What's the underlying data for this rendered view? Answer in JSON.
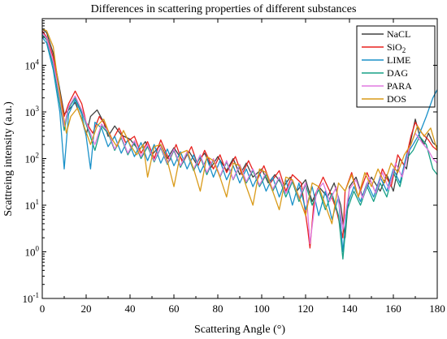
{
  "chart_data": {
    "type": "line",
    "title": "Differences in scattering properties of different substances",
    "xlabel": "Scattering Angle (°)",
    "ylabel": "Scattreing intensity (a.u.)",
    "xlim": [
      0,
      180
    ],
    "ylim": [
      0.1,
      100000
    ],
    "yscale": "log",
    "xticks": [
      0,
      20,
      40,
      60,
      80,
      100,
      120,
      140,
      160,
      180
    ],
    "yticks": [
      {
        "value": 0.1,
        "base": "10",
        "exp": "-1"
      },
      {
        "value": 1,
        "base": "10",
        "exp": "0"
      },
      {
        "value": 10,
        "base": "10",
        "exp": "1"
      },
      {
        "value": 100,
        "base": "10",
        "exp": "2"
      },
      {
        "value": 1000,
        "base": "10",
        "exp": "3"
      },
      {
        "value": 10000,
        "base": "10",
        "exp": "4"
      }
    ],
    "grid": false,
    "legend_position": "top-right",
    "series": [
      {
        "name": "NaCL",
        "name_main": "NaCL",
        "name_sub": "",
        "color": "#404040",
        "x": [
          0,
          2,
          5,
          8,
          10,
          12,
          15,
          18,
          20,
          22,
          25,
          28,
          30,
          33,
          36,
          40,
          44,
          47,
          50,
          54,
          57,
          60,
          64,
          67,
          70,
          74,
          77,
          80,
          84,
          87,
          90,
          93,
          96,
          100,
          103,
          106,
          110,
          113,
          116,
          120,
          123,
          126,
          130,
          133,
          136,
          138,
          140,
          143,
          146,
          150,
          154,
          157,
          160,
          163,
          166,
          168,
          170,
          172,
          174,
          176,
          178,
          180
        ],
        "y": [
          60000,
          50000,
          18000,
          3000,
          900,
          1100,
          1600,
          700,
          320,
          800,
          1100,
          600,
          300,
          500,
          320,
          260,
          150,
          230,
          120,
          200,
          100,
          170,
          90,
          140,
          80,
          130,
          65,
          110,
          55,
          100,
          45,
          80,
          40,
          60,
          30,
          45,
          25,
          40,
          20,
          35,
          12,
          25,
          15,
          30,
          10,
          2,
          25,
          40,
          15,
          40,
          20,
          45,
          20,
          100,
          60,
          250,
          700,
          300,
          200,
          350,
          220,
          180
        ]
      },
      {
        "name": "SiO2",
        "name_main": "SiO",
        "name_sub": "2",
        "color": "#e8211e",
        "x": [
          0,
          2,
          5,
          8,
          10,
          12,
          15,
          18,
          20,
          23,
          26,
          29,
          32,
          35,
          38,
          42,
          45,
          48,
          51,
          54,
          58,
          61,
          64,
          68,
          71,
          74,
          78,
          81,
          84,
          88,
          91,
          94,
          98,
          101,
          104,
          108,
          111,
          114,
          118,
          121,
          122,
          124,
          128,
          131,
          134,
          137,
          138,
          141,
          144,
          148,
          152,
          155,
          159,
          162,
          165,
          168,
          170,
          173,
          176,
          178,
          180
        ],
        "y": [
          55000,
          40000,
          15000,
          2500,
          800,
          1500,
          2800,
          1500,
          600,
          350,
          800,
          500,
          250,
          450,
          220,
          300,
          130,
          230,
          100,
          250,
          90,
          200,
          80,
          180,
          70,
          150,
          60,
          120,
          50,
          110,
          45,
          90,
          35,
          70,
          30,
          55,
          20,
          45,
          30,
          3,
          1.2,
          15,
          40,
          20,
          8,
          2,
          20,
          50,
          15,
          50,
          18,
          60,
          25,
          120,
          70,
          300,
          600,
          350,
          250,
          180,
          150
        ]
      },
      {
        "name": "LIME",
        "name_main": "LIME",
        "name_sub": "",
        "color": "#1a91c9",
        "x": [
          0,
          2,
          5,
          8,
          10,
          12,
          15,
          18,
          20,
          22,
          24,
          27,
          30,
          33,
          36,
          39,
          42,
          45,
          48,
          51,
          54,
          57,
          60,
          63,
          66,
          69,
          72,
          75,
          78,
          81,
          84,
          87,
          90,
          93,
          96,
          99,
          102,
          105,
          108,
          111,
          114,
          117,
          120,
          123,
          126,
          129,
          132,
          135,
          137,
          139,
          142,
          145,
          148,
          151,
          154,
          157,
          160,
          163,
          166,
          169,
          172,
          175,
          178,
          180
        ],
        "y": [
          40000,
          30000,
          8000,
          1000,
          60,
          900,
          1800,
          900,
          300,
          60,
          600,
          450,
          180,
          300,
          130,
          250,
          110,
          220,
          90,
          200,
          80,
          160,
          70,
          140,
          60,
          120,
          50,
          100,
          40,
          90,
          35,
          70,
          30,
          60,
          25,
          50,
          20,
          40,
          15,
          35,
          10,
          30,
          8,
          25,
          6,
          20,
          5,
          15,
          1,
          10,
          25,
          12,
          30,
          15,
          40,
          20,
          60,
          30,
          120,
          200,
          350,
          800,
          2000,
          3000
        ]
      },
      {
        "name": "DAG",
        "name_main": "DAG",
        "name_sub": "",
        "color": "#17a085",
        "x": [
          0,
          2,
          5,
          8,
          10,
          12,
          15,
          18,
          21,
          24,
          27,
          30,
          33,
          36,
          39,
          42,
          45,
          48,
          51,
          54,
          57,
          60,
          63,
          66,
          69,
          72,
          75,
          78,
          81,
          84,
          87,
          90,
          93,
          96,
          99,
          102,
          105,
          108,
          111,
          114,
          117,
          120,
          123,
          126,
          129,
          132,
          135,
          137,
          139,
          142,
          145,
          148,
          151,
          154,
          157,
          160,
          163,
          166,
          169,
          172,
          175,
          178,
          180
        ],
        "y": [
          45000,
          35000,
          10000,
          1500,
          400,
          1200,
          2000,
          1000,
          400,
          150,
          500,
          350,
          150,
          280,
          120,
          220,
          100,
          180,
          85,
          170,
          75,
          150,
          65,
          130,
          55,
          110,
          45,
          95,
          40,
          85,
          35,
          70,
          30,
          55,
          25,
          45,
          20,
          38,
          15,
          32,
          12,
          28,
          10,
          22,
          8,
          18,
          6,
          0.7,
          8,
          20,
          10,
          25,
          12,
          30,
          15,
          50,
          25,
          100,
          150,
          300,
          200,
          60,
          45
        ]
      },
      {
        "name": "PARA",
        "name_main": "PARA",
        "name_sub": "",
        "color": "#e07ae0",
        "x": [
          0,
          2,
          5,
          8,
          10,
          12,
          15,
          18,
          21,
          24,
          27,
          30,
          33,
          36,
          39,
          42,
          45,
          48,
          51,
          54,
          57,
          60,
          63,
          66,
          69,
          72,
          75,
          78,
          81,
          84,
          87,
          90,
          93,
          96,
          99,
          102,
          105,
          108,
          111,
          114,
          117,
          120,
          122,
          125,
          128,
          131,
          134,
          137,
          140,
          143,
          146,
          149,
          152,
          155,
          158,
          161,
          164,
          167,
          170,
          173,
          176,
          178,
          180
        ],
        "y": [
          50000,
          38000,
          12000,
          2000,
          500,
          1300,
          2200,
          1100,
          450,
          200,
          550,
          380,
          160,
          300,
          130,
          240,
          110,
          200,
          90,
          180,
          80,
          160,
          70,
          140,
          60,
          120,
          50,
          100,
          42,
          90,
          36,
          75,
          32,
          60,
          27,
          50,
          22,
          40,
          18,
          35,
          14,
          30,
          1.5,
          20,
          30,
          12,
          25,
          3,
          22,
          35,
          14,
          40,
          18,
          50,
          22,
          80,
          40,
          150,
          350,
          220,
          150,
          100,
          80
        ]
      },
      {
        "name": "DOS",
        "name_main": "DOS",
        "name_sub": "",
        "color": "#d99a18",
        "x": [
          0,
          2,
          5,
          7,
          9,
          11,
          13,
          16,
          19,
          22,
          25,
          28,
          31,
          34,
          37,
          40,
          43,
          46,
          48,
          51,
          54,
          57,
          60,
          63,
          66,
          69,
          72,
          75,
          78,
          81,
          84,
          87,
          90,
          93,
          96,
          99,
          102,
          105,
          108,
          111,
          114,
          117,
          120,
          123,
          126,
          129,
          132,
          135,
          138,
          141,
          144,
          147,
          150,
          153,
          156,
          159,
          162,
          165,
          168,
          171,
          174,
          177,
          180
        ],
        "y": [
          60000,
          55000,
          25000,
          5000,
          1200,
          350,
          800,
          1200,
          500,
          200,
          500,
          700,
          300,
          180,
          400,
          200,
          120,
          200,
          40,
          180,
          200,
          90,
          25,
          130,
          150,
          60,
          20,
          110,
          90,
          40,
          15,
          80,
          70,
          25,
          10,
          60,
          50,
          20,
          8,
          40,
          35,
          15,
          6,
          30,
          25,
          10,
          4,
          30,
          20,
          45,
          15,
          50,
          25,
          60,
          30,
          80,
          50,
          120,
          200,
          500,
          300,
          450,
          150
        ]
      }
    ]
  }
}
